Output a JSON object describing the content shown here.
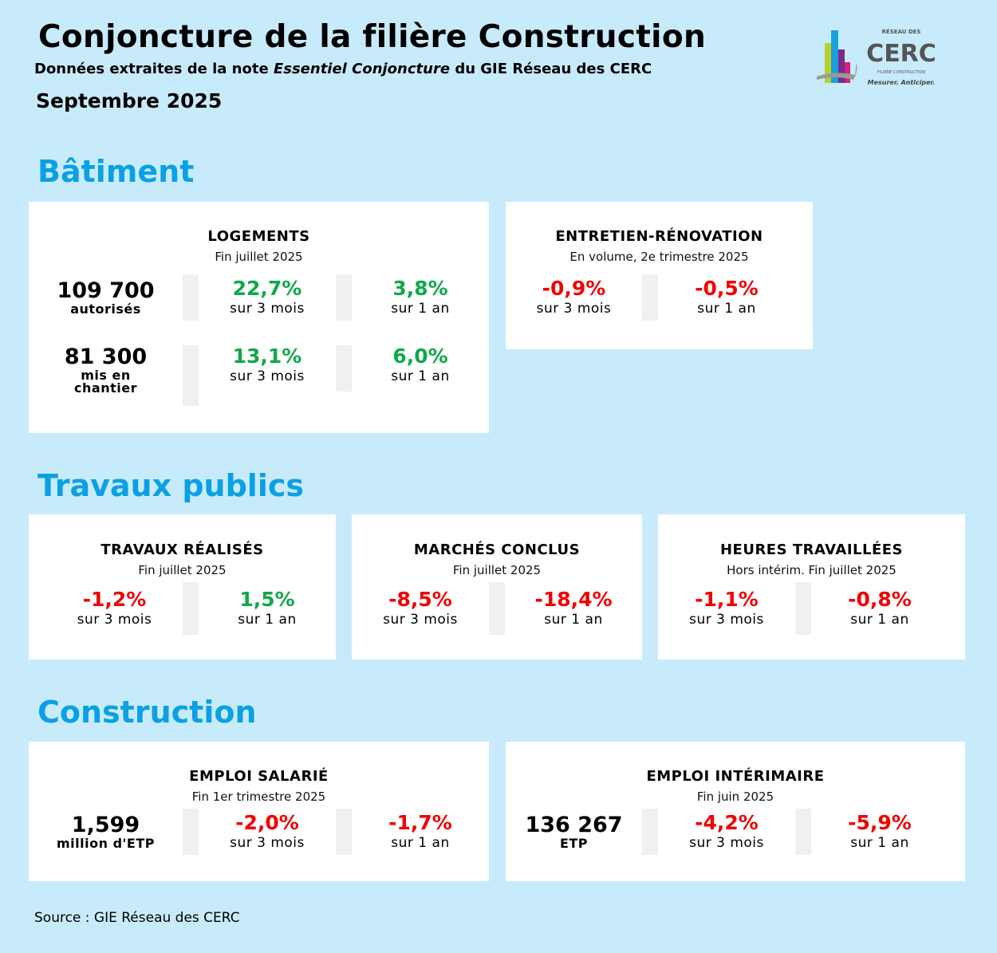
{
  "header": {
    "title": "Conjoncture de la filière Construction",
    "subtitle_pre": "Données extraites de la note ",
    "subtitle_italic": "Essentiel Conjoncture",
    "subtitle_post": " du GIE Réseau des CERC",
    "date": "Septembre 2025"
  },
  "logo": {
    "top": "RÉSEAU DES",
    "name": "CERC",
    "line": "FILIÈRE CONSTRUCTION",
    "tagline": "Mesurer. Anticiper."
  },
  "colors": {
    "background": "#c8ebfb",
    "section": "#0aa0e6",
    "positive": "#10a84a",
    "negative": "#f00000"
  },
  "sections": {
    "batiment": "Bâtiment",
    "tp": "Travaux publics",
    "construction": "Construction"
  },
  "logements": {
    "title": "LOGEMENTS",
    "sub": "Fin juillet 2025",
    "rows": [
      {
        "value": "109 700",
        "label": "autorisés",
        "m3": "22,7%",
        "m3l": "sur 3 mois",
        "y1": "3,8%",
        "y1l": "sur 1 an"
      },
      {
        "value": "81 300",
        "label": "mis en chantier",
        "m3": "13,1%",
        "m3l": "sur 3 mois",
        "y1": "6,0%",
        "y1l": "sur 1 an"
      }
    ]
  },
  "entretien": {
    "title": "ENTRETIEN-RÉNOVATION",
    "sub": "En volume, 2e trimestre 2025",
    "m3": "-0,9%",
    "m3l": "sur 3 mois",
    "y1": "-0,5%",
    "y1l": "sur 1 an"
  },
  "travaux": {
    "title": "TRAVAUX RÉALISÉS",
    "sub": "Fin juillet 2025",
    "m3": "-1,2%",
    "m3l": "sur 3 mois",
    "y1": "1,5%",
    "y1l": "sur 1 an"
  },
  "marches": {
    "title": "MARCHÉS CONCLUS",
    "sub": "Fin juillet 2025",
    "m3": "-8,5%",
    "m3l": "sur 3 mois",
    "y1": "-18,4%",
    "y1l": "sur 1 an"
  },
  "heures": {
    "title": "HEURES TRAVAILLÉES",
    "sub": "Hors intérim. Fin juillet 2025",
    "m3": "-1,1%",
    "m3l": "sur 3 mois",
    "y1": "-0,8%",
    "y1l": "sur 1 an"
  },
  "salarie": {
    "title": "EMPLOI SALARIÉ",
    "sub": "Fin 1er trimestre 2025",
    "value": "1,599",
    "label": "million d'ETP",
    "m3": "-2,0%",
    "m3l": "sur 3 mois",
    "y1": "-1,7%",
    "y1l": "sur 1 an"
  },
  "interim": {
    "title": "EMPLOI INTÉRIMAIRE",
    "sub": "Fin juin 2025",
    "value": "136 267",
    "label": "ETP",
    "m3": "-4,2%",
    "m3l": "sur 3 mois",
    "y1": "-5,9%",
    "y1l": "sur 1 an"
  },
  "source": "Source : GIE Réseau des CERC"
}
